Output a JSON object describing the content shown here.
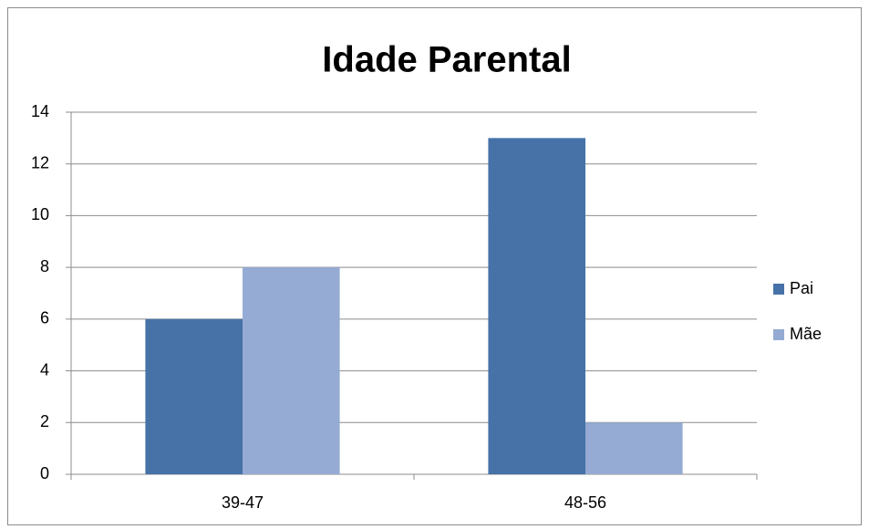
{
  "chart_data": {
    "type": "bar",
    "title": "Idade Parental",
    "categories": [
      "39-47",
      "48-56"
    ],
    "series": [
      {
        "name": "Pai",
        "color": "#4672a8",
        "values": [
          6,
          13
        ]
      },
      {
        "name": "Mãe",
        "color": "#95abd3",
        "values": [
          8,
          2
        ]
      }
    ],
    "ylim": [
      0,
      14
    ],
    "yticks": [
      0,
      2,
      4,
      6,
      8,
      10,
      12,
      14
    ],
    "grid": true,
    "legend": "right"
  }
}
